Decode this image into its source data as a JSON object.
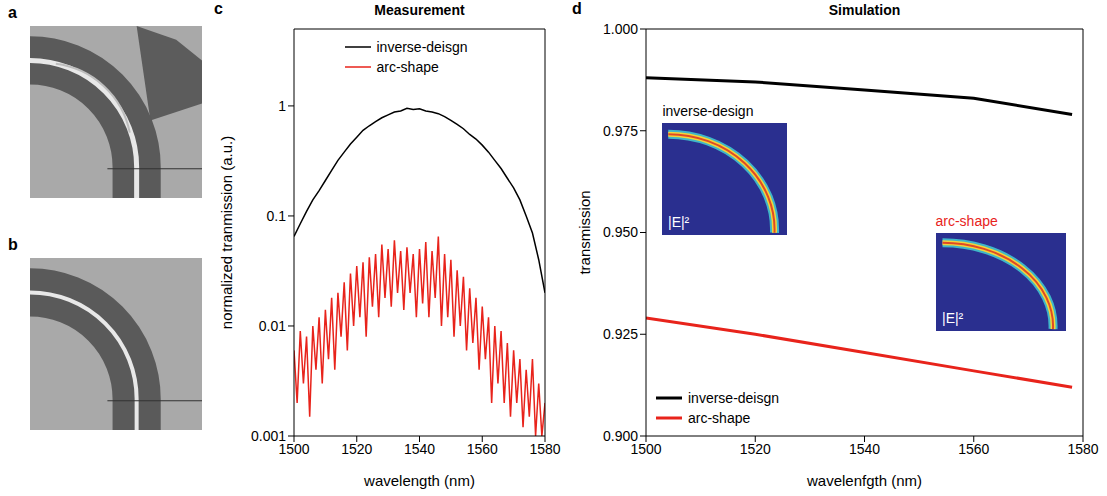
{
  "images": [
    {
      "panel_label": "a"
    },
    {
      "panel_label": "b"
    }
  ],
  "chart_data": [
    {
      "panel_label": "c",
      "type": "line",
      "title": "Measurement",
      "x_label": "wavelength (nm)",
      "y_label": "normalized tranmission (a.u.)",
      "log": "y",
      "xlim": [
        1500,
        1580
      ],
      "xticks": [
        1500,
        1520,
        1540,
        1560,
        1580
      ],
      "ylim": [
        0.001,
        5
      ],
      "yticks": [
        0.001,
        0.01,
        0.1,
        1
      ],
      "legend": "top",
      "series": [
        {
          "name": "inverse-deisgn",
          "color": "#000000",
          "x": [
            1500,
            1502,
            1504,
            1506,
            1508,
            1510,
            1512,
            1514,
            1516,
            1518,
            1520,
            1522,
            1524,
            1526,
            1528,
            1530,
            1532,
            1534,
            1536,
            1538,
            1540,
            1542,
            1544,
            1546,
            1548,
            1550,
            1552,
            1554,
            1556,
            1558,
            1560,
            1562,
            1564,
            1566,
            1568,
            1570,
            1572,
            1574,
            1576,
            1578,
            1580
          ],
          "values": [
            0.065,
            0.085,
            0.11,
            0.14,
            0.17,
            0.21,
            0.26,
            0.32,
            0.38,
            0.45,
            0.52,
            0.6,
            0.66,
            0.72,
            0.78,
            0.83,
            0.88,
            0.9,
            0.95,
            0.93,
            0.94,
            0.9,
            0.88,
            0.85,
            0.8,
            0.74,
            0.68,
            0.62,
            0.55,
            0.5,
            0.44,
            0.38,
            0.32,
            0.27,
            0.22,
            0.18,
            0.14,
            0.1,
            0.07,
            0.04,
            0.02
          ]
        },
        {
          "name": "arc-shape",
          "color": "#e8231b",
          "x": [
            1500,
            1501,
            1502,
            1503,
            1504,
            1505,
            1506,
            1507,
            1508,
            1509,
            1510,
            1511,
            1512,
            1513,
            1514,
            1515,
            1516,
            1517,
            1518,
            1519,
            1520,
            1521,
            1522,
            1523,
            1524,
            1525,
            1526,
            1527,
            1528,
            1529,
            1530,
            1531,
            1532,
            1533,
            1534,
            1535,
            1536,
            1537,
            1538,
            1539,
            1540,
            1541,
            1542,
            1543,
            1544,
            1545,
            1546,
            1547,
            1548,
            1549,
            1550,
            1551,
            1552,
            1553,
            1554,
            1555,
            1556,
            1557,
            1558,
            1559,
            1560,
            1561,
            1562,
            1563,
            1564,
            1565,
            1566,
            1567,
            1568,
            1569,
            1570,
            1571,
            1572,
            1573,
            1574,
            1575,
            1576,
            1577,
            1578,
            1579,
            1580
          ],
          "values": [
            0.006,
            0.002,
            0.009,
            0.003,
            0.008,
            0.0015,
            0.01,
            0.004,
            0.012,
            0.003,
            0.014,
            0.005,
            0.018,
            0.004,
            0.02,
            0.008,
            0.025,
            0.006,
            0.03,
            0.01,
            0.035,
            0.012,
            0.038,
            0.008,
            0.042,
            0.015,
            0.045,
            0.012,
            0.055,
            0.018,
            0.05,
            0.015,
            0.06,
            0.02,
            0.048,
            0.014,
            0.052,
            0.02,
            0.045,
            0.012,
            0.05,
            0.016,
            0.058,
            0.012,
            0.048,
            0.018,
            0.065,
            0.01,
            0.045,
            0.012,
            0.04,
            0.008,
            0.032,
            0.01,
            0.028,
            0.006,
            0.022,
            0.007,
            0.018,
            0.004,
            0.015,
            0.005,
            0.012,
            0.002,
            0.01,
            0.003,
            0.009,
            0.002,
            0.007,
            0.0015,
            0.006,
            0.002,
            0.005,
            0.0012,
            0.004,
            0.0015,
            0.005,
            0.001,
            0.003,
            0.001,
            0.002
          ]
        }
      ]
    },
    {
      "panel_label": "d",
      "type": "line",
      "title": "Simulation",
      "x_label": "wavelenfgth (nm)",
      "y_label": "transmission",
      "xlim": [
        1500,
        1580
      ],
      "xticks": [
        1500,
        1520,
        1540,
        1560,
        1580
      ],
      "ylim": [
        0.9,
        1.0
      ],
      "yticks": [
        {
          "value": 0.9,
          "label": "0.900"
        },
        {
          "value": 0.925,
          "label": "0.925"
        },
        {
          "value": 0.95,
          "label": "0.950"
        },
        {
          "value": 0.975,
          "label": "0.975"
        },
        {
          "value": 1.0,
          "label": "1.000"
        }
      ],
      "legend": "bottom left",
      "series": [
        {
          "name": "inverse-deisgn",
          "color": "#000000",
          "x": [
            1500,
            1520,
            1540,
            1560,
            1578
          ],
          "values": [
            0.988,
            0.987,
            0.985,
            0.983,
            0.979
          ]
        },
        {
          "name": "arc-shape",
          "color": "#e8231b",
          "x": [
            1500,
            1520,
            1540,
            1560,
            1578
          ],
          "values": [
            0.929,
            0.925,
            0.9205,
            0.916,
            0.912
          ]
        }
      ],
      "insets": [
        {
          "title": "inverse-design",
          "color": "#000000",
          "field_label": "|E|²"
        },
        {
          "title": "arc-shape",
          "color": "#e8231b",
          "field_label": "|E|²"
        }
      ]
    }
  ]
}
